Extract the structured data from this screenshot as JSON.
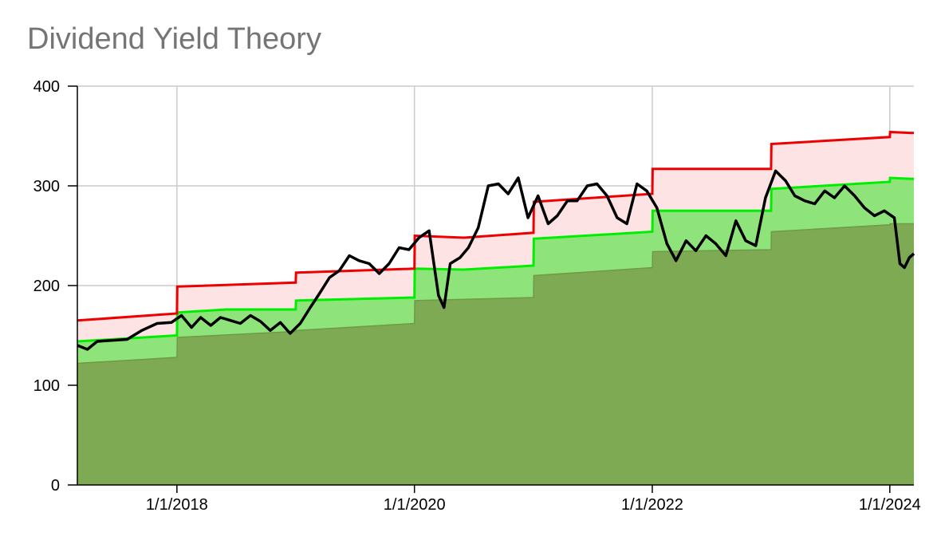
{
  "chart_data": {
    "type": "area",
    "title": "Dividend Yield Theory",
    "xlabel": "",
    "ylabel": "",
    "x_range": [
      "2017-03-01",
      "2024-03-15"
    ],
    "ylim": [
      0,
      400
    ],
    "y_ticks": [
      0,
      100,
      200,
      300,
      400
    ],
    "x_ticks": [
      {
        "date": "2018-01-01",
        "label": "1/1/2018"
      },
      {
        "date": "2020-01-01",
        "label": "1/1/2020"
      },
      {
        "date": "2022-01-01",
        "label": "1/1/2022"
      },
      {
        "date": "2024-01-01",
        "label": "1/1/2024"
      }
    ],
    "grid": true,
    "legend": "none",
    "series": [
      {
        "role": "lower-band",
        "color": "#7daa52",
        "points": [
          [
            "2017-03-01",
            122
          ],
          [
            "2018-01-01",
            128
          ],
          [
            "2018-01-02",
            148
          ],
          [
            "2019-01-01",
            154
          ],
          [
            "2019-01-02",
            155
          ],
          [
            "2020-01-01",
            162
          ],
          [
            "2020-01-02",
            185
          ],
          [
            "2021-01-01",
            188
          ],
          [
            "2021-01-02",
            210
          ],
          [
            "2022-01-01",
            218
          ],
          [
            "2022-01-02",
            234
          ],
          [
            "2023-01-01",
            236
          ],
          [
            "2023-01-02",
            254
          ],
          [
            "2024-01-01",
            261
          ],
          [
            "2024-01-02",
            262
          ],
          [
            "2024-03-15",
            262
          ]
        ]
      },
      {
        "role": "middle-band",
        "color": "#00ee00",
        "fill": "#8ee47b",
        "points": [
          [
            "2017-03-01",
            144
          ],
          [
            "2018-01-01",
            150
          ],
          [
            "2018-01-02",
            173
          ],
          [
            "2018-06-01",
            176
          ],
          [
            "2019-01-01",
            176
          ],
          [
            "2019-01-02",
            185
          ],
          [
            "2020-01-01",
            188
          ],
          [
            "2020-01-02",
            217
          ],
          [
            "2020-06-01",
            216
          ],
          [
            "2021-01-01",
            220
          ],
          [
            "2021-01-02",
            247
          ],
          [
            "2022-01-01",
            254
          ],
          [
            "2022-01-02",
            275
          ],
          [
            "2022-06-01",
            275
          ],
          [
            "2023-01-01",
            275
          ],
          [
            "2023-01-02",
            297
          ],
          [
            "2024-01-01",
            304
          ],
          [
            "2024-01-02",
            308
          ],
          [
            "2024-03-15",
            307
          ]
        ]
      },
      {
        "role": "upper-band",
        "color": "#ee0000",
        "fill": "#fde3e3",
        "points": [
          [
            "2017-03-01",
            165
          ],
          [
            "2018-01-01",
            172
          ],
          [
            "2018-01-02",
            199
          ],
          [
            "2019-01-01",
            203
          ],
          [
            "2019-01-02",
            213
          ],
          [
            "2020-01-01",
            217
          ],
          [
            "2020-01-02",
            250
          ],
          [
            "2020-06-01",
            248
          ],
          [
            "2021-01-01",
            253
          ],
          [
            "2021-01-02",
            284
          ],
          [
            "2022-01-01",
            292
          ],
          [
            "2022-01-02",
            317
          ],
          [
            "2023-01-01",
            317
          ],
          [
            "2023-01-02",
            342
          ],
          [
            "2024-01-01",
            349
          ],
          [
            "2024-01-02",
            354
          ],
          [
            "2024-03-15",
            353
          ]
        ]
      },
      {
        "role": "price",
        "color": "#000000",
        "points": [
          [
            "2017-03-01",
            140
          ],
          [
            "2017-04-01",
            136
          ],
          [
            "2017-05-01",
            144
          ],
          [
            "2017-06-15",
            145
          ],
          [
            "2017-08-01",
            146
          ],
          [
            "2017-09-15",
            155
          ],
          [
            "2017-11-01",
            162
          ],
          [
            "2017-12-15",
            163
          ],
          [
            "2018-01-15",
            170
          ],
          [
            "2018-02-15",
            158
          ],
          [
            "2018-03-15",
            168
          ],
          [
            "2018-04-15",
            160
          ],
          [
            "2018-05-15",
            168
          ],
          [
            "2018-06-15",
            165
          ],
          [
            "2018-07-15",
            162
          ],
          [
            "2018-08-15",
            170
          ],
          [
            "2018-09-15",
            164
          ],
          [
            "2018-10-15",
            155
          ],
          [
            "2018-11-15",
            163
          ],
          [
            "2018-12-15",
            152
          ],
          [
            "2019-01-15",
            162
          ],
          [
            "2019-02-15",
            178
          ],
          [
            "2019-03-15",
            192
          ],
          [
            "2019-04-15",
            208
          ],
          [
            "2019-05-15",
            215
          ],
          [
            "2019-06-15",
            230
          ],
          [
            "2019-07-15",
            225
          ],
          [
            "2019-08-15",
            222
          ],
          [
            "2019-09-15",
            212
          ],
          [
            "2019-10-15",
            222
          ],
          [
            "2019-11-15",
            238
          ],
          [
            "2019-12-15",
            236
          ],
          [
            "2020-01-15",
            248
          ],
          [
            "2020-02-15",
            255
          ],
          [
            "2020-03-15",
            190
          ],
          [
            "2020-04-01",
            178
          ],
          [
            "2020-04-20",
            222
          ],
          [
            "2020-05-20",
            228
          ],
          [
            "2020-06-15",
            238
          ],
          [
            "2020-07-15",
            258
          ],
          [
            "2020-08-15",
            300
          ],
          [
            "2020-09-15",
            302
          ],
          [
            "2020-10-15",
            292
          ],
          [
            "2020-11-15",
            308
          ],
          [
            "2020-12-15",
            268
          ],
          [
            "2021-01-15",
            290
          ],
          [
            "2021-02-15",
            262
          ],
          [
            "2021-03-15",
            270
          ],
          [
            "2021-04-15",
            285
          ],
          [
            "2021-05-15",
            285
          ],
          [
            "2021-06-15",
            300
          ],
          [
            "2021-07-15",
            302
          ],
          [
            "2021-08-15",
            290
          ],
          [
            "2021-09-15",
            268
          ],
          [
            "2021-10-15",
            262
          ],
          [
            "2021-11-15",
            302
          ],
          [
            "2021-12-15",
            295
          ],
          [
            "2022-01-15",
            278
          ],
          [
            "2022-02-15",
            242
          ],
          [
            "2022-03-15",
            225
          ],
          [
            "2022-04-15",
            245
          ],
          [
            "2022-05-15",
            235
          ],
          [
            "2022-06-15",
            250
          ],
          [
            "2022-07-15",
            242
          ],
          [
            "2022-08-15",
            230
          ],
          [
            "2022-09-15",
            265
          ],
          [
            "2022-10-15",
            245
          ],
          [
            "2022-11-15",
            240
          ],
          [
            "2022-12-15",
            288
          ],
          [
            "2023-01-15",
            315
          ],
          [
            "2023-02-15",
            305
          ],
          [
            "2023-03-15",
            290
          ],
          [
            "2023-04-15",
            285
          ],
          [
            "2023-05-15",
            282
          ],
          [
            "2023-06-15",
            295
          ],
          [
            "2023-07-15",
            288
          ],
          [
            "2023-08-15",
            300
          ],
          [
            "2023-09-15",
            290
          ],
          [
            "2023-10-15",
            278
          ],
          [
            "2023-11-15",
            270
          ],
          [
            "2023-12-15",
            275
          ],
          [
            "2024-01-15",
            268
          ],
          [
            "2024-02-01",
            222
          ],
          [
            "2024-02-15",
            218
          ],
          [
            "2024-03-01",
            228
          ],
          [
            "2024-03-15",
            232
          ]
        ]
      }
    ]
  },
  "colors": {
    "gridline": "#cccccc",
    "axis": "#000000",
    "title": "#757575",
    "tick_label": "#000000",
    "plot_background": "#ffffff"
  }
}
